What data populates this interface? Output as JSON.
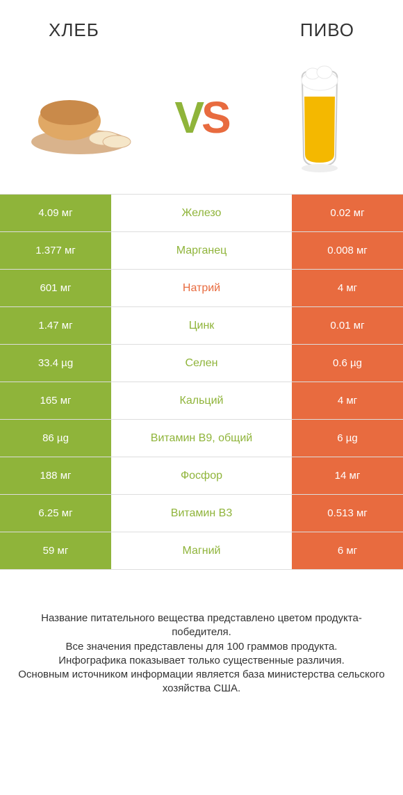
{
  "header": {
    "left_title": "ХЛЕБ",
    "right_title": "ПИВО"
  },
  "vs": {
    "v": "V",
    "s": "S"
  },
  "colors": {
    "green": "#8fb43a",
    "orange": "#e86b3f",
    "white": "#ffffff",
    "text": "#333333",
    "row_border": "#dddddd"
  },
  "table": {
    "left_bg": "#8fb43a",
    "right_bg": "#e86b3f",
    "rows": [
      {
        "left": "4.09 мг",
        "mid": "Железо",
        "mid_color": "#8fb43a",
        "right": "0.02 мг"
      },
      {
        "left": "1.377 мг",
        "mid": "Марганец",
        "mid_color": "#8fb43a",
        "right": "0.008 мг"
      },
      {
        "left": "601 мг",
        "mid": "Натрий",
        "mid_color": "#e86b3f",
        "right": "4 мг"
      },
      {
        "left": "1.47 мг",
        "mid": "Цинк",
        "mid_color": "#8fb43a",
        "right": "0.01 мг"
      },
      {
        "left": "33.4 µg",
        "mid": "Селен",
        "mid_color": "#8fb43a",
        "right": "0.6 µg"
      },
      {
        "left": "165 мг",
        "mid": "Кальций",
        "mid_color": "#8fb43a",
        "right": "4 мг"
      },
      {
        "left": "86 µg",
        "mid": "Витамин B9, общий",
        "mid_color": "#8fb43a",
        "right": "6 µg"
      },
      {
        "left": "188 мг",
        "mid": "Фосфор",
        "mid_color": "#8fb43a",
        "right": "14 мг"
      },
      {
        "left": "6.25 мг",
        "mid": "Витамин B3",
        "mid_color": "#8fb43a",
        "right": "0.513 мг"
      },
      {
        "left": "59 мг",
        "mid": "Магний",
        "mid_color": "#8fb43a",
        "right": "6 мг"
      }
    ]
  },
  "footer": {
    "line1": "Название питательного вещества представлено цветом продукта-победителя.",
    "line2": "Все значения представлены для 100 граммов продукта.",
    "line3": "Инфографика показывает только существенные различия.",
    "line4": "Основным источником информации является база министерства сельского хозяйства США."
  }
}
